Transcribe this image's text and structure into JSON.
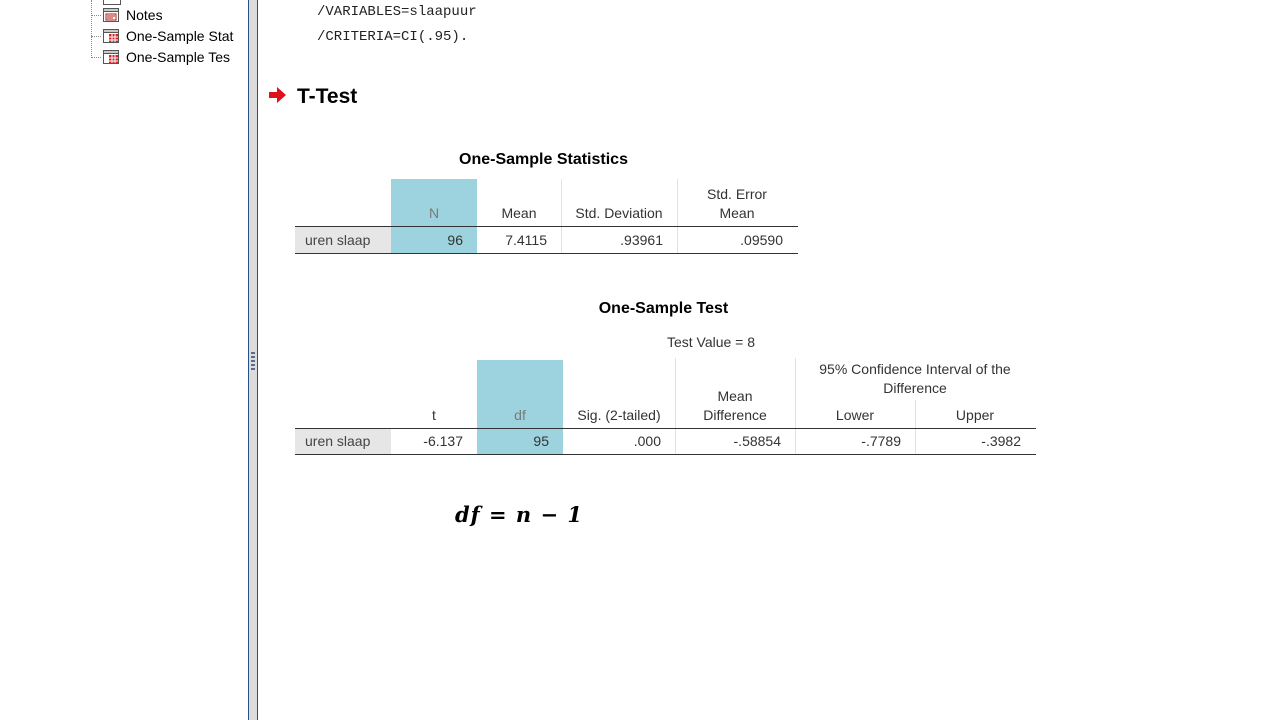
{
  "outline": {
    "items": [
      {
        "label": "Notes",
        "icon": "notes-icon"
      },
      {
        "label": "One-Sample Stat",
        "icon": "table-icon"
      },
      {
        "label": "One-Sample Tes",
        "icon": "table-icon"
      }
    ]
  },
  "syntax": {
    "lines": [
      "/VARIABLES=slaapuur",
      "/CRITERIA=CI(.95)."
    ]
  },
  "heading": "T-Test",
  "stats_table": {
    "title": "One-Sample Statistics",
    "columns": [
      "N",
      "Mean",
      "Std. Deviation",
      "Std. Error\nMean"
    ],
    "row": {
      "label": "uren slaap",
      "values": [
        "96",
        "7.4115",
        ".93961",
        ".09590"
      ]
    }
  },
  "test_table": {
    "title": "One-Sample Test",
    "test_value": "Test Value = 8",
    "ci_header": "95% Confidence Interval of the\nDifference",
    "columns": [
      "t",
      "df",
      "Sig. (2-tailed)",
      "Mean\nDifference",
      "Lower",
      "Upper"
    ],
    "row": {
      "label": "uren slaap",
      "values": [
        "-6.137",
        "95",
        ".000",
        "-.58854",
        "-.7789",
        "-.3982"
      ]
    }
  },
  "formula": "df = n − 1",
  "colors": {
    "highlight": "#9dd3de",
    "arrow": "#e0101a",
    "splitter": "#2a4f8a"
  }
}
